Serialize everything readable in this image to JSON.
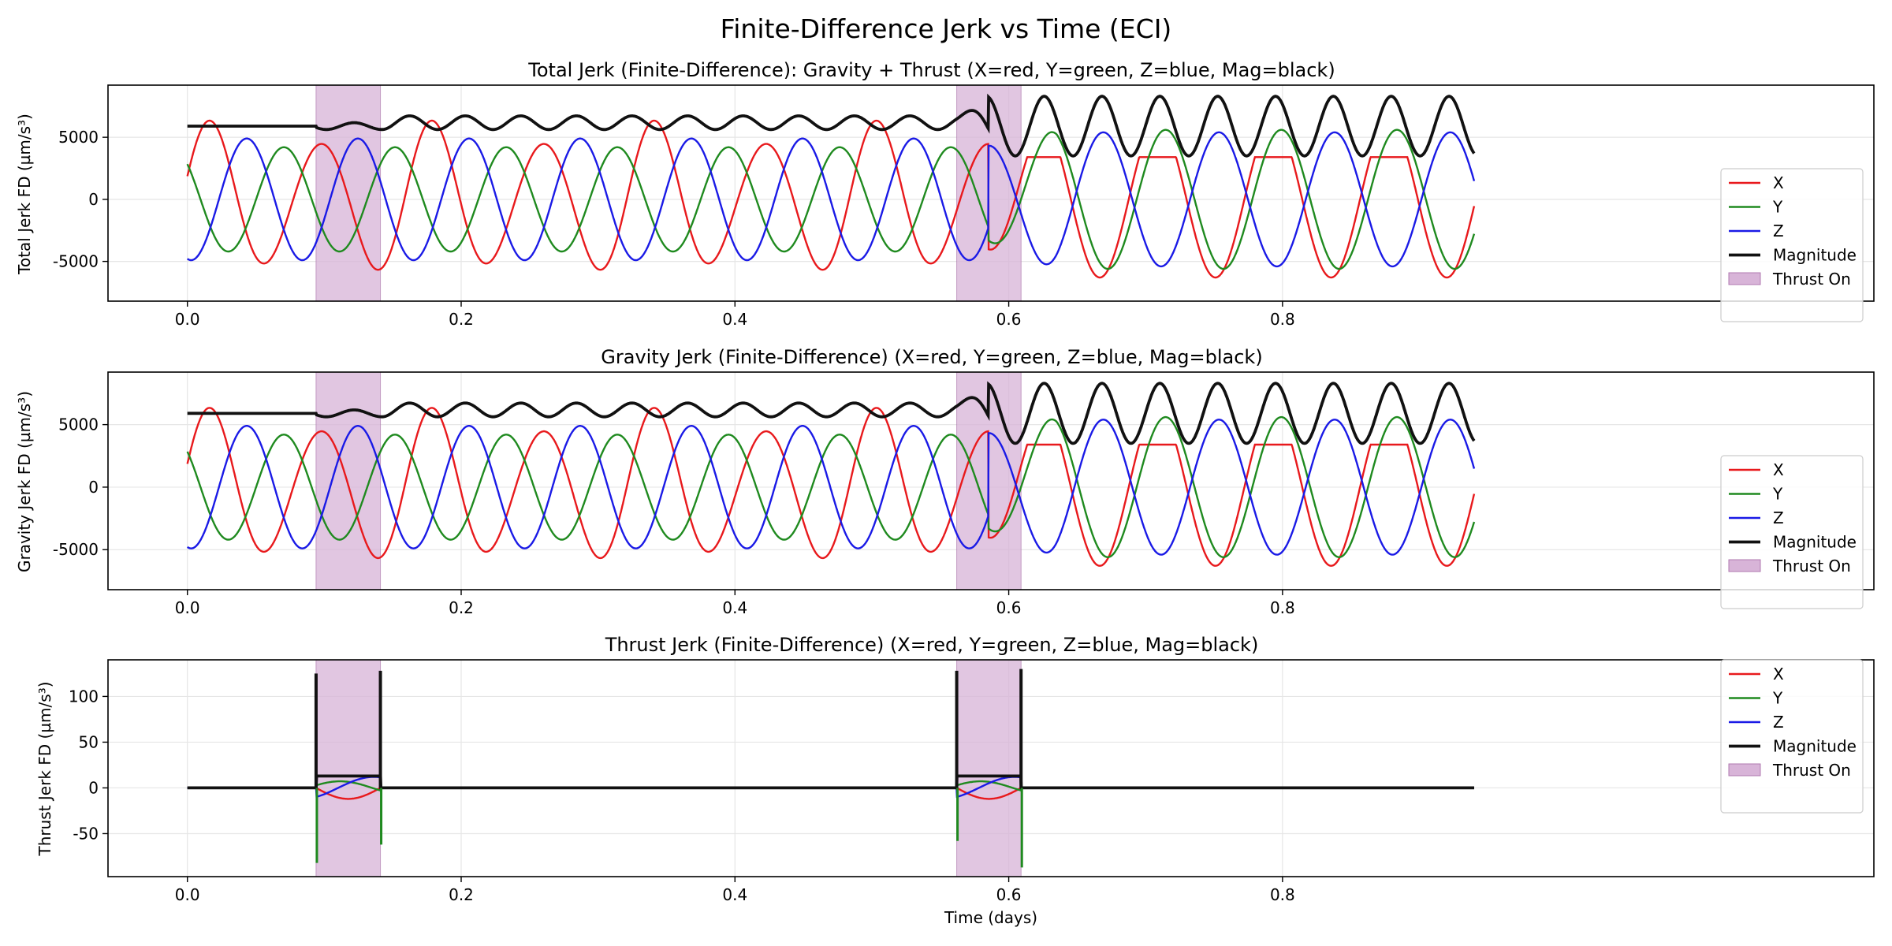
{
  "figure": {
    "title": "Finite-Difference Jerk vs Time (ECI)",
    "xlabel": "Time (days)"
  },
  "colors": {
    "x": "#e8191c",
    "y": "#1f8a1f",
    "z": "#1a1ae6",
    "magnitude": "#111111",
    "thrust": "#d8b4d8"
  },
  "legend": {
    "placement": "right",
    "entries": [
      "X",
      "Y",
      "Z",
      "Magnitude",
      "Thrust On"
    ]
  },
  "chart_data": [
    {
      "type": "line",
      "title": "Total Jerk (Finite-Difference): Gravity + Thrust (X=red, Y=green, Z=blue, Mag=black)",
      "ylabel": "Total Jerk FD (µm/s³)",
      "xlim": [
        -0.058,
        1.232
      ],
      "ylim": [
        -8200,
        9200
      ],
      "xticks": [
        "0.0",
        "0.2",
        "0.4",
        "0.6",
        "0.8"
      ],
      "yticks": [
        "-5000",
        "0",
        "5000"
      ],
      "thrust_windows": [
        [
          0.094,
          0.141
        ],
        [
          0.562,
          0.609
        ]
      ],
      "grid": true,
      "kind": "gravity",
      "t_end": 0.94,
      "orbit1": {
        "period": 0.0812,
        "x_amp": 5400,
        "y_amp": 4200,
        "z_amp": 4900,
        "mag_mean": 5900,
        "mag_amp": 1100
      },
      "orbit2": {
        "period": 0.0845,
        "x_amp": 7300,
        "y_amp": 5600,
        "z_amp": 5400,
        "mag_mean": 5900,
        "mag_amp": 2400
      }
    },
    {
      "type": "line",
      "title": "Gravity Jerk (Finite-Difference) (X=red, Y=green, Z=blue, Mag=black)",
      "ylabel": "Gravity Jerk FD (µm/s³)",
      "xlim": [
        -0.058,
        1.232
      ],
      "ylim": [
        -8200,
        9200
      ],
      "xticks": [
        "0.0",
        "0.2",
        "0.4",
        "0.6",
        "0.8"
      ],
      "yticks": [
        "-5000",
        "0",
        "5000"
      ],
      "thrust_windows": [
        [
          0.094,
          0.141
        ],
        [
          0.562,
          0.609
        ]
      ],
      "grid": true,
      "kind": "gravity",
      "t_end": 0.94,
      "orbit1": {
        "period": 0.0812,
        "x_amp": 5400,
        "y_amp": 4200,
        "z_amp": 4900,
        "mag_mean": 5900,
        "mag_amp": 1100
      },
      "orbit2": {
        "period": 0.0845,
        "x_amp": 7300,
        "y_amp": 5600,
        "z_amp": 5400,
        "mag_mean": 5900,
        "mag_amp": 2400
      }
    },
    {
      "type": "line",
      "title": "Thrust Jerk (Finite-Difference) (X=red, Y=green, Z=blue, Mag=black)",
      "ylabel": "Thrust Jerk FD (µm/s³)",
      "xlim": [
        -0.058,
        1.232
      ],
      "ylim": [
        -97,
        140
      ],
      "xticks": [
        "0.0",
        "0.2",
        "0.4",
        "0.6",
        "0.8"
      ],
      "yticks": [
        "-50",
        "0",
        "50",
        "100"
      ],
      "thrust_windows": [
        [
          0.094,
          0.141
        ],
        [
          0.562,
          0.609
        ]
      ],
      "grid": true,
      "kind": "thrust",
      "t_end": 0.94,
      "thrust": {
        "spikes_mag": [
          125,
          128,
          128,
          130
        ],
        "spikes_y": [
          -82,
          -62,
          -58,
          -87
        ],
        "plateau_mag": 13,
        "inner_amp": 12
      }
    }
  ]
}
